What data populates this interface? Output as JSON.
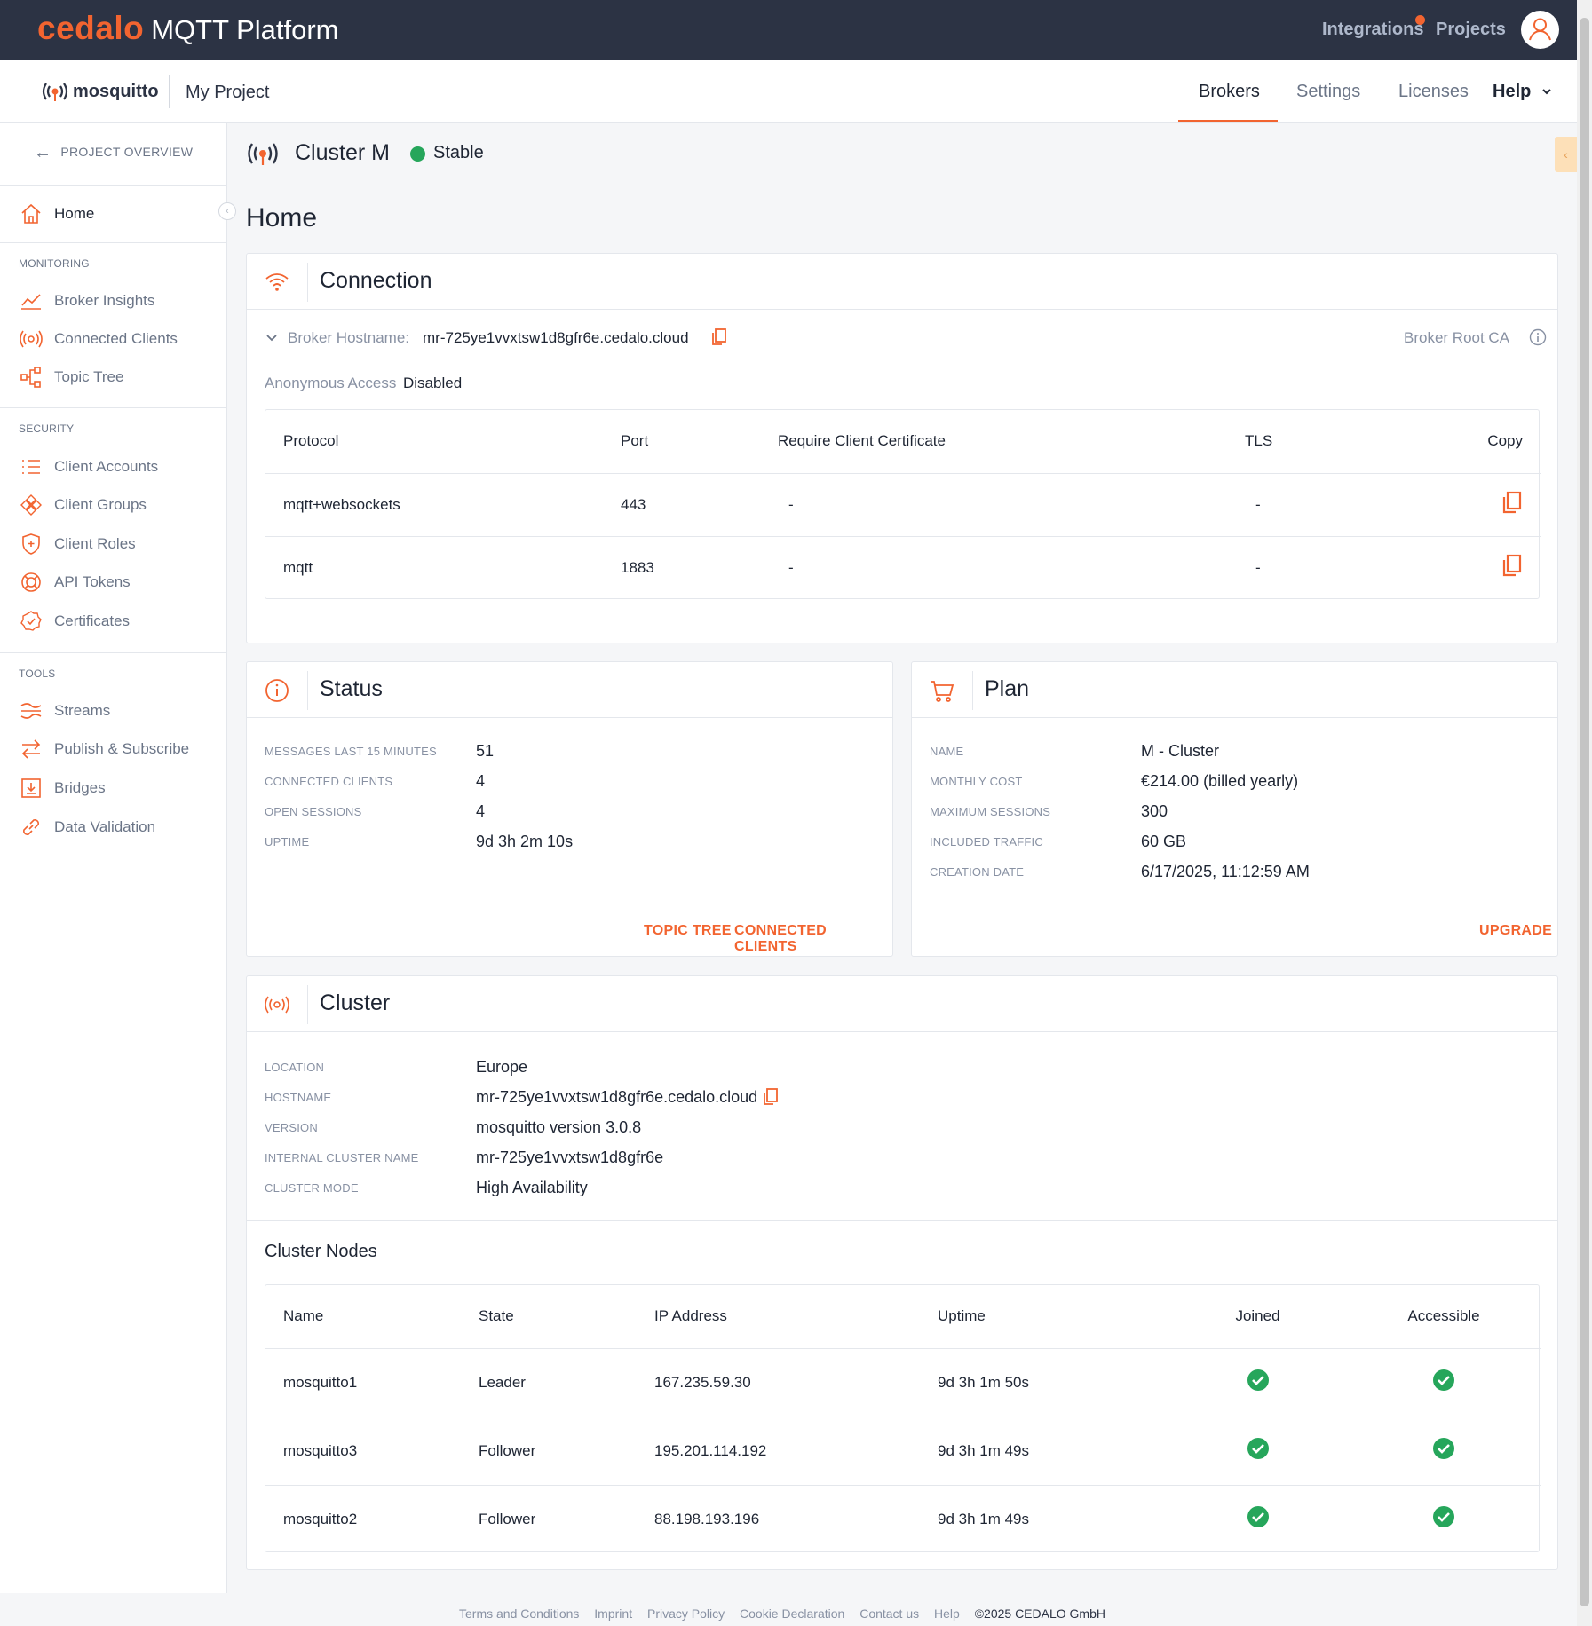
{
  "brand": {
    "cedalo": "cedalo",
    "platform": "MQTT Platform"
  },
  "topnav": {
    "integrations": "Integrations",
    "projects": "Projects"
  },
  "subheader": {
    "logo_text": "mosquitto",
    "project_name": "My Project",
    "tabs": [
      "Brokers",
      "Settings",
      "Licenses",
      "Help"
    ],
    "active_tab": "Brokers"
  },
  "sidebar": {
    "back_label": "PROJECT OVERVIEW",
    "home": "Home",
    "monitoring_label": "MONITORING",
    "monitoring": [
      "Broker Insights",
      "Connected Clients",
      "Topic Tree"
    ],
    "security_label": "SECURITY",
    "security": [
      "Client Accounts",
      "Client Groups",
      "Client Roles",
      "API Tokens",
      "Certificates"
    ],
    "tools_label": "TOOLS",
    "tools": [
      "Streams",
      "Publish & Subscribe",
      "Bridges",
      "Data Validation"
    ]
  },
  "cluster_header": {
    "name": "Cluster M",
    "status": "Stable",
    "status_color": "#26a65b"
  },
  "page_title": "Home",
  "connection": {
    "title": "Connection",
    "hostname_label": "Broker Hostname:",
    "hostname": "mr-725ye1vvxtsw1d8gfr6e.cedalo.cloud",
    "root_ca": "Broker Root CA",
    "anon_label": "Anonymous Access",
    "anon_value": "Disabled",
    "table_headers": [
      "Protocol",
      "Port",
      "Require Client Certificate",
      "TLS",
      "Copy"
    ],
    "rows": [
      {
        "protocol": "mqtt+websockets",
        "port": "443",
        "cert": "-",
        "tls": "-"
      },
      {
        "protocol": "mqtt",
        "port": "1883",
        "cert": "-",
        "tls": "-"
      }
    ]
  },
  "status": {
    "title": "Status",
    "items": [
      {
        "label": "MESSAGES LAST 15 MINUTES",
        "value": "51"
      },
      {
        "label": "CONNECTED CLIENTS",
        "value": "4"
      },
      {
        "label": "OPEN SESSIONS",
        "value": "4"
      },
      {
        "label": "UPTIME",
        "value": "9d 3h 2m 10s"
      }
    ],
    "link_topic_tree": "TOPIC TREE",
    "link_connected_clients": "CONNECTED CLIENTS"
  },
  "plan": {
    "title": "Plan",
    "items": [
      {
        "label": "NAME",
        "value": "M - Cluster"
      },
      {
        "label": "MONTHLY COST",
        "value": "€214.00 (billed yearly)"
      },
      {
        "label": "MAXIMUM SESSIONS",
        "value": "300"
      },
      {
        "label": "INCLUDED TRAFFIC",
        "value": "60 GB"
      },
      {
        "label": "CREATION DATE",
        "value": "6/17/2025, 11:12:59 AM"
      }
    ],
    "upgrade": "UPGRADE"
  },
  "cluster": {
    "title": "Cluster",
    "items": [
      {
        "label": "LOCATION",
        "value": "Europe"
      },
      {
        "label": "HOSTNAME",
        "value": "mr-725ye1vvxtsw1d8gfr6e.cedalo.cloud"
      },
      {
        "label": "VERSION",
        "value": "mosquitto version 3.0.8"
      },
      {
        "label": "INTERNAL CLUSTER NAME",
        "value": "mr-725ye1vvxtsw1d8gfr6e"
      },
      {
        "label": "CLUSTER MODE",
        "value": "High Availability"
      }
    ],
    "nodes_title": "Cluster Nodes",
    "node_headers": [
      "Name",
      "State",
      "IP Address",
      "Uptime",
      "Joined",
      "Accessible"
    ],
    "nodes": [
      {
        "name": "mosquitto1",
        "state": "Leader",
        "ip": "167.235.59.30",
        "uptime": "9d 3h 1m 50s"
      },
      {
        "name": "mosquitto3",
        "state": "Follower",
        "ip": "195.201.114.192",
        "uptime": "9d 3h 1m 49s"
      },
      {
        "name": "mosquitto2",
        "state": "Follower",
        "ip": "88.198.193.196",
        "uptime": "9d 3h 1m 49s"
      }
    ]
  },
  "footer": {
    "links": [
      "Terms and Conditions",
      "Imprint",
      "Privacy Policy",
      "Cookie Declaration",
      "Contact us",
      "Help"
    ],
    "copyright": "©2025 CEDALO GmbH"
  },
  "colors": {
    "accent": "#f26430",
    "topbar": "#2c3344",
    "success": "#26a65b"
  }
}
